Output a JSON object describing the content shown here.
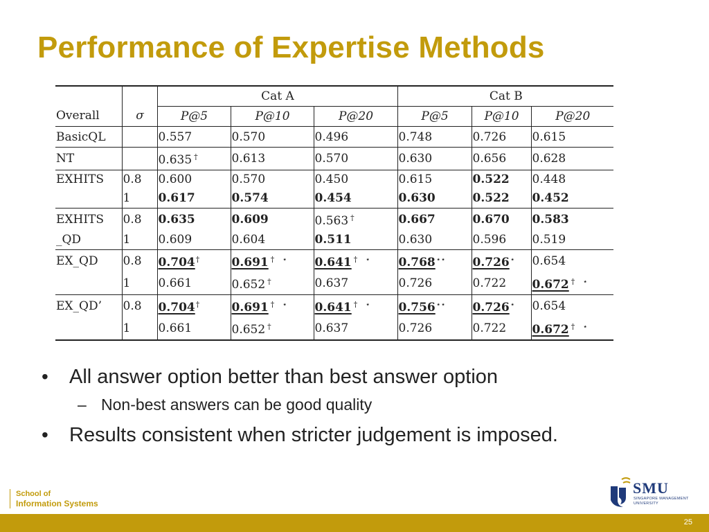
{
  "slide": {
    "title": "Performance of Expertise Methods",
    "page_number": "25"
  },
  "table": {
    "col_overall": "Overall",
    "col_sigma": "σ",
    "cat_a": "Cat A",
    "cat_b": "Cat B",
    "metrics": [
      "P@5",
      "P@10",
      "P@20",
      "P@5",
      "P@10",
      "P@20"
    ],
    "rows": [
      {
        "method": "BasicQL",
        "sigma": "",
        "cells": [
          {
            "v": "0.557"
          },
          {
            "v": "0.570"
          },
          {
            "v": "0.496"
          },
          {
            "v": "0.748"
          },
          {
            "v": "0.726"
          },
          {
            "v": "0.615"
          }
        ]
      },
      {
        "method": "NT",
        "sigma": "",
        "cells": [
          {
            "v": "0.635",
            "mk": "†"
          },
          {
            "v": "0.613"
          },
          {
            "v": "0.570"
          },
          {
            "v": "0.630"
          },
          {
            "v": "0.656"
          },
          {
            "v": "0.628"
          }
        ]
      },
      {
        "method": "EXHITS",
        "sigma": "0.8",
        "cells": [
          {
            "v": "0.600"
          },
          {
            "v": "0.570"
          },
          {
            "v": "0.450"
          },
          {
            "v": "0.615"
          },
          {
            "v": "0.522",
            "b": true
          },
          {
            "v": "0.448"
          }
        ]
      },
      {
        "method": "",
        "sigma": "1",
        "cells": [
          {
            "v": "0.617",
            "b": true
          },
          {
            "v": "0.574",
            "b": true
          },
          {
            "v": "0.454",
            "b": true
          },
          {
            "v": "0.630",
            "b": true
          },
          {
            "v": "0.522",
            "b": true
          },
          {
            "v": "0.452",
            "b": true
          }
        ]
      },
      {
        "method": "EXHITS",
        "sigma": "0.8",
        "cells": [
          {
            "v": "0.635",
            "b": true
          },
          {
            "v": "0.609",
            "b": true
          },
          {
            "v": "0.563",
            "mk": "†"
          },
          {
            "v": "0.667",
            "b": true
          },
          {
            "v": "0.670",
            "b": true
          },
          {
            "v": "0.583",
            "b": true
          }
        ]
      },
      {
        "method": "_QD",
        "sigma": "1",
        "cells": [
          {
            "v": "0.609"
          },
          {
            "v": "0.604"
          },
          {
            "v": "0.511",
            "b": true
          },
          {
            "v": "0.630"
          },
          {
            "v": "0.596"
          },
          {
            "v": "0.519"
          }
        ]
      },
      {
        "method": "EX_QD",
        "sigma": "0.8",
        "cells": [
          {
            "v": "0.704",
            "b": true,
            "u": true,
            "mk2": "†"
          },
          {
            "v": "0.691",
            "b": true,
            "u": true,
            "mk": "† ⋆"
          },
          {
            "v": "0.641",
            "b": true,
            "u": true,
            "mk": "† ⋆"
          },
          {
            "v": "0.768",
            "b": true,
            "u": true,
            "mk2": "⋆⋆"
          },
          {
            "v": "0.726",
            "b": true,
            "u": true,
            "mk2": "⋆"
          },
          {
            "v": "0.654"
          }
        ]
      },
      {
        "method": "",
        "sigma": "1",
        "cells": [
          {
            "v": "0.661"
          },
          {
            "v": "0.652",
            "mk": "†"
          },
          {
            "v": "0.637"
          },
          {
            "v": "0.726"
          },
          {
            "v": "0.722"
          },
          {
            "v": "0.672",
            "b": true,
            "u": true,
            "mk": "† ⋆"
          }
        ]
      },
      {
        "method": "EX_QD’",
        "sigma": "0.8",
        "cells": [
          {
            "v": "0.704",
            "b": true,
            "u": true,
            "mk2": "†"
          },
          {
            "v": "0.691",
            "b": true,
            "u": true,
            "mk": "† ⋆"
          },
          {
            "v": "0.641",
            "b": true,
            "u": true,
            "mk": "† ⋆"
          },
          {
            "v": "0.756",
            "b": true,
            "u": true,
            "mk2": "⋆⋆"
          },
          {
            "v": "0.726",
            "b": true,
            "u": true,
            "mk2": "⋆"
          },
          {
            "v": "0.654"
          }
        ]
      },
      {
        "method": "",
        "sigma": "1",
        "cells": [
          {
            "v": "0.661"
          },
          {
            "v": "0.652",
            "mk": "†"
          },
          {
            "v": "0.637"
          },
          {
            "v": "0.726"
          },
          {
            "v": "0.722"
          },
          {
            "v": "0.672",
            "b": true,
            "u": true,
            "mk": "† ⋆"
          }
        ]
      }
    ]
  },
  "bullets": {
    "b1": "All answer option better than best answer option",
    "b1_sub": "Non-best answers can be good quality",
    "b2": "Results consistent when stricter judgement is imposed."
  },
  "footer": {
    "school_line1": "School of",
    "school_line2": "Information Systems",
    "logo_name": "SMU",
    "logo_sub1": "SINGAPORE MANAGEMENT",
    "logo_sub2": "UNIVERSITY"
  },
  "colors": {
    "accent": "#c29b0c",
    "logo_blue": "#1f3a7a"
  }
}
